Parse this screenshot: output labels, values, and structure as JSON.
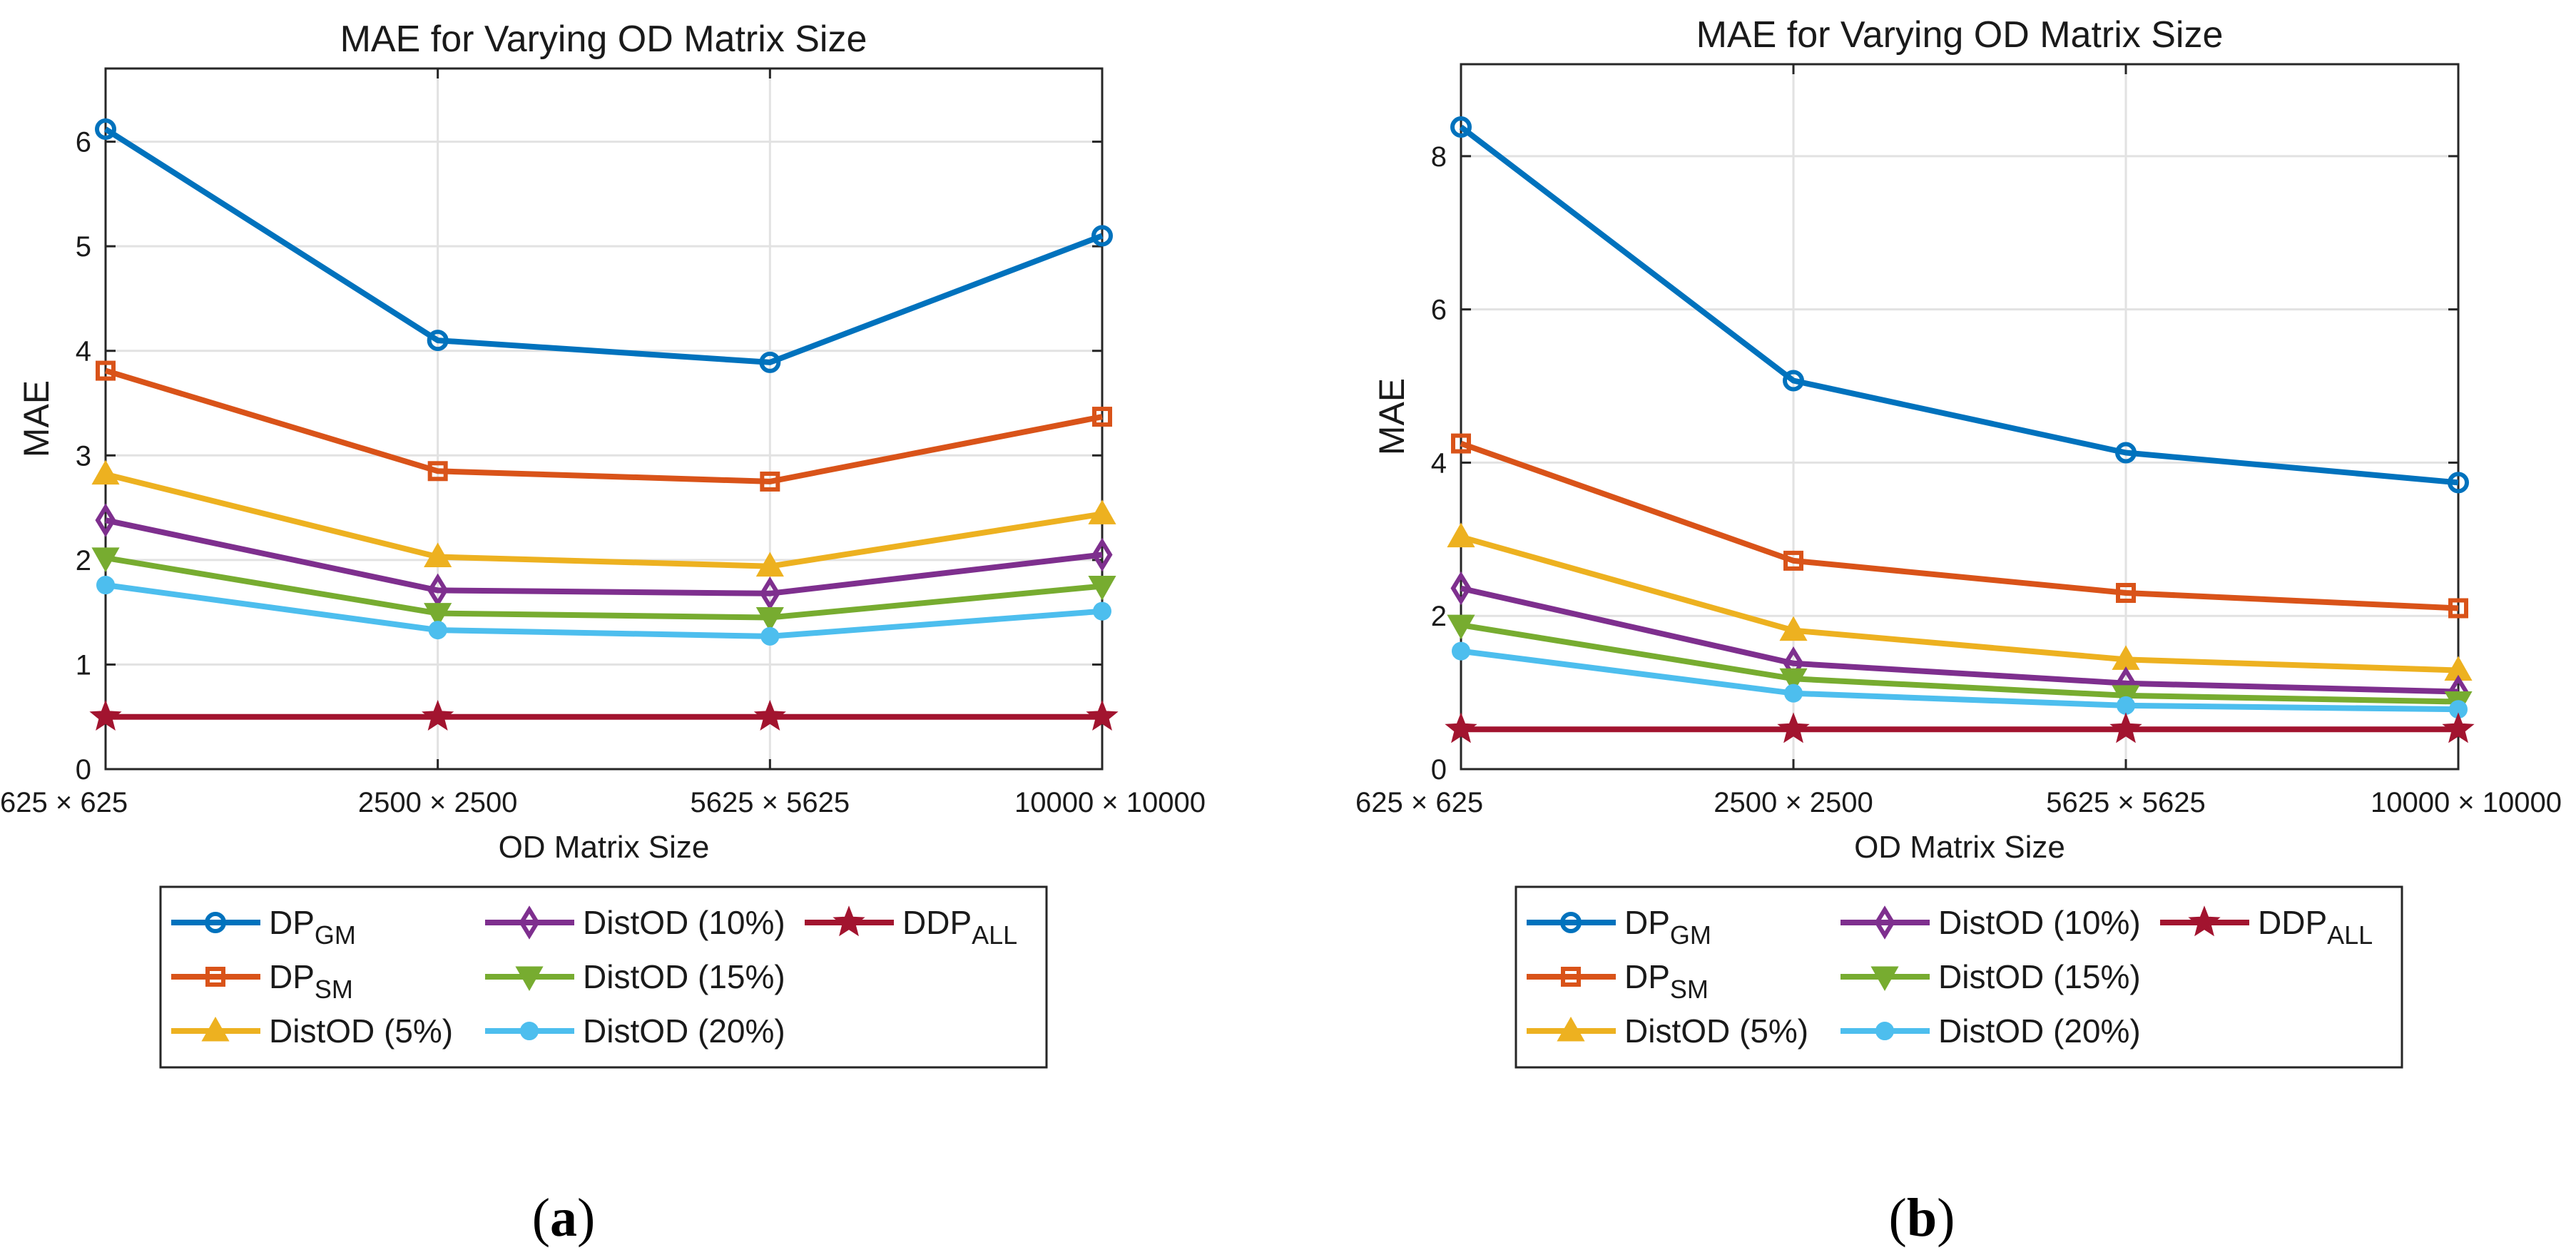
{
  "chart_data": [
    {
      "type": "line",
      "panel": "(a)",
      "title": "MAE for Varying OD Matrix Size",
      "xlabel": "OD Matrix Size",
      "ylabel": "MAE",
      "categories": [
        "625 × 625",
        "2500 × 2500",
        "5625 × 5625",
        "10000 × 10000"
      ],
      "ylim": [
        0,
        6.7
      ],
      "yticks": [
        0,
        1,
        2,
        3,
        4,
        5,
        6
      ],
      "grid": true,
      "legend_position": "below",
      "series": [
        {
          "name": "DP",
          "sub": "GM",
          "color": "#0072BD",
          "marker": "circle",
          "values": [
            6.12,
            4.1,
            3.89,
            5.1
          ]
        },
        {
          "name": "DP",
          "sub": "SM",
          "color": "#D95319",
          "marker": "square",
          "values": [
            3.81,
            2.85,
            2.75,
            3.37
          ]
        },
        {
          "name": "DistOD (5%)",
          "sub": "",
          "color": "#EDB120",
          "marker": "triangle-up",
          "values": [
            2.82,
            2.03,
            1.94,
            2.44
          ]
        },
        {
          "name": "DistOD (10%)",
          "sub": "",
          "color": "#7E2F8E",
          "marker": "diamond",
          "values": [
            2.38,
            1.71,
            1.68,
            2.05
          ]
        },
        {
          "name": "DistOD (15%)",
          "sub": "",
          "color": "#77AC30",
          "marker": "triangle-down",
          "values": [
            2.02,
            1.49,
            1.45,
            1.75
          ]
        },
        {
          "name": "DistOD (20%)",
          "sub": "",
          "color": "#4DBEEE",
          "marker": "dot",
          "values": [
            1.76,
            1.33,
            1.27,
            1.51
          ]
        },
        {
          "name": "DDP",
          "sub": "ALL",
          "color": "#A2142F",
          "marker": "star",
          "values": [
            0.5,
            0.5,
            0.5,
            0.5
          ]
        }
      ]
    },
    {
      "type": "line",
      "panel": "(b)",
      "title": "MAE for Varying OD Matrix Size",
      "xlabel": "OD Matrix Size",
      "ylabel": "MAE",
      "categories": [
        "625 × 625",
        "2500 × 2500",
        "5625 × 5625",
        "10000 × 10000"
      ],
      "ylim": [
        0,
        9.2
      ],
      "yticks": [
        0,
        2,
        4,
        6,
        8
      ],
      "grid": true,
      "legend_position": "below",
      "series": [
        {
          "name": "DP",
          "sub": "GM",
          "color": "#0072BD",
          "marker": "circle",
          "values": [
            8.38,
            5.07,
            4.13,
            3.74
          ]
        },
        {
          "name": "DP",
          "sub": "SM",
          "color": "#D95319",
          "marker": "square",
          "values": [
            4.25,
            2.72,
            2.3,
            2.1
          ]
        },
        {
          "name": "DistOD (5%)",
          "sub": "",
          "color": "#EDB120",
          "marker": "triangle-up",
          "values": [
            3.03,
            1.81,
            1.43,
            1.29
          ]
        },
        {
          "name": "DistOD (10%)",
          "sub": "",
          "color": "#7E2F8E",
          "marker": "diamond",
          "values": [
            2.36,
            1.38,
            1.12,
            1.01
          ]
        },
        {
          "name": "DistOD (15%)",
          "sub": "",
          "color": "#77AC30",
          "marker": "triangle-down",
          "values": [
            1.88,
            1.18,
            0.96,
            0.88
          ]
        },
        {
          "name": "DistOD (20%)",
          "sub": "",
          "color": "#4DBEEE",
          "marker": "dot",
          "values": [
            1.54,
            0.99,
            0.83,
            0.78
          ]
        },
        {
          "name": "DDP",
          "sub": "ALL",
          "color": "#A2142F",
          "marker": "star",
          "values": [
            0.52,
            0.52,
            0.52,
            0.52
          ]
        }
      ]
    }
  ]
}
